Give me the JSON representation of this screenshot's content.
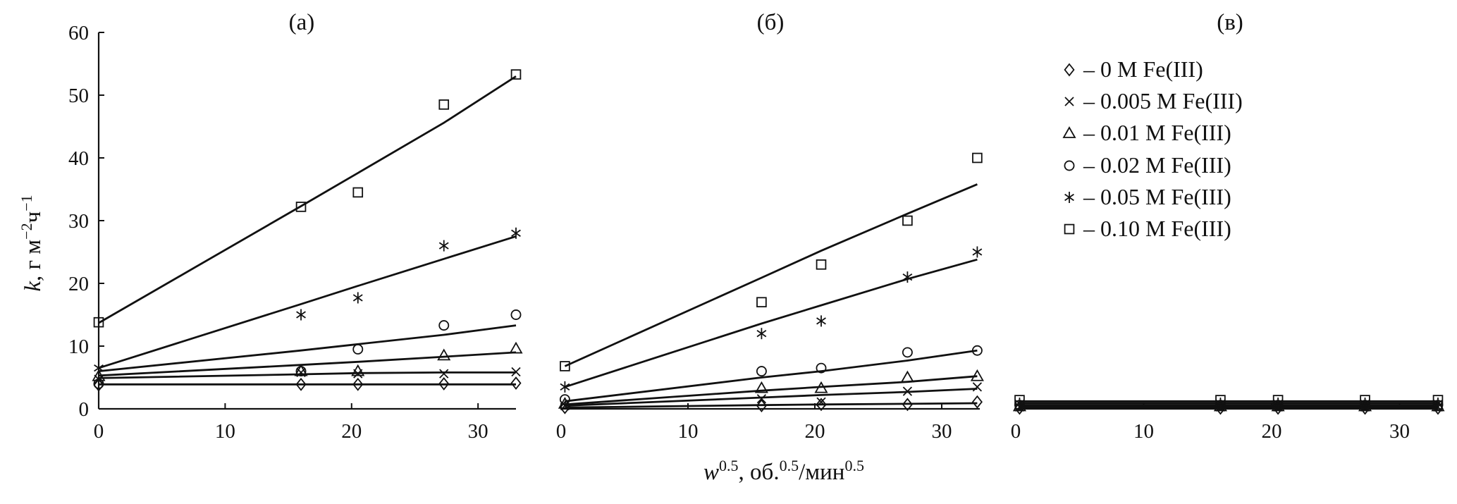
{
  "chart_data": {
    "type": "scatter",
    "ylabel": {
      "k": "k",
      "rest": ", г м",
      "sup1": "−2",
      "mid": "ч",
      "sup2": "−1"
    },
    "xlabel": {
      "w": "w",
      "sup1": "0.5",
      "rest": ", об.",
      "sup2": "0.5",
      "mid": "/мин",
      "sup3": "0.5"
    },
    "legend": [
      {
        "marker": "diamond",
        "label": "– 0 M Fe(III)"
      },
      {
        "marker": "cross",
        "label": "– 0.005 M Fe(III)"
      },
      {
        "marker": "triangle",
        "label": "– 0.01 M Fe(III)"
      },
      {
        "marker": "circle",
        "label": "– 0.02 M Fe(III)"
      },
      {
        "marker": "asterisk",
        "label": "– 0.05 M Fe(III)"
      },
      {
        "marker": "square",
        "label": "– 0.10 M Fe(III)"
      }
    ],
    "panels": [
      {
        "title": "(a)",
        "xlim": [
          0,
          33
        ],
        "ylim": [
          0,
          60
        ],
        "xticks": [
          "0",
          "10",
          "20",
          "30"
        ],
        "yticks": [
          "0",
          "10",
          "20",
          "30",
          "40",
          "50",
          "60"
        ],
        "x": [
          0,
          16,
          20.5,
          27.3,
          33
        ],
        "series": [
          {
            "marker": "diamond",
            "values": [
              3.8,
              3.9,
              3.9,
              4.0,
              4.1
            ],
            "fit": [
              3.9,
              3.9,
              3.9,
              3.9,
              3.9
            ]
          },
          {
            "marker": "cross",
            "values": [
              4.7,
              5.8,
              5.6,
              5.6,
              5.9
            ],
            "fit": [
              4.9,
              5.5,
              5.7,
              5.8,
              5.8
            ]
          },
          {
            "marker": "triangle",
            "values": [
              5.2,
              6.0,
              6.0,
              8.5,
              9.6
            ],
            "fit": [
              5.3,
              7.0,
              7.5,
              8.3,
              9.0
            ]
          },
          {
            "marker": "circle",
            "values": [
              4.0,
              6.0,
              9.5,
              13.3,
              15.0
            ],
            "fit": [
              6.0,
              9.3,
              10.3,
              11.8,
              13.3
            ]
          },
          {
            "marker": "asterisk",
            "values": [
              6.5,
              15.0,
              17.7,
              26.0,
              28.0
            ],
            "fit": [
              6.5,
              16.7,
              19.6,
              23.9,
              27.5
            ]
          },
          {
            "marker": "square",
            "values": [
              13.8,
              32.2,
              34.5,
              48.5,
              53.3
            ],
            "fit": [
              13.7,
              32.3,
              37.6,
              45.6,
              53.0
            ]
          }
        ]
      },
      {
        "title": "(б)",
        "xlim": [
          0,
          33
        ],
        "ylim": [
          0,
          60
        ],
        "xticks": [
          "0",
          "10",
          "20",
          "30"
        ],
        "yticks": [],
        "x": [
          0.3,
          15.8,
          20.5,
          27.3,
          32.8
        ],
        "series": [
          {
            "marker": "diamond",
            "values": [
              0.2,
              0.5,
              0.7,
              0.7,
              1.1
            ],
            "fit": [
              0.2,
              0.6,
              0.7,
              0.8,
              0.9
            ]
          },
          {
            "marker": "cross",
            "values": [
              0.5,
              1.6,
              1.1,
              2.8,
              3.5
            ],
            "fit": [
              0.5,
              1.8,
              2.2,
              2.7,
              3.2
            ]
          },
          {
            "marker": "triangle",
            "values": [
              0.8,
              3.3,
              3.3,
              5.0,
              5.2
            ],
            "fit": [
              0.7,
              2.9,
              3.5,
              4.3,
              5.2
            ]
          },
          {
            "marker": "circle",
            "values": [
              1.5,
              6.0,
              6.5,
              9.0,
              9.3
            ],
            "fit": [
              1.2,
              5.0,
              6.0,
              7.7,
              9.3
            ]
          },
          {
            "marker": "asterisk",
            "values": [
              3.5,
              12.0,
              14.0,
              21.0,
              25.0
            ],
            "fit": [
              3.5,
              13.6,
              16.5,
              20.7,
              23.8
            ]
          },
          {
            "marker": "square",
            "values": [
              6.8,
              17.0,
              23.0,
              30.0,
              40.0
            ],
            "fit": [
              6.8,
              20.9,
              25.2,
              31.1,
              35.8
            ]
          }
        ]
      },
      {
        "title": "(в)",
        "xlim": [
          0,
          33
        ],
        "ylim": [
          0,
          60
        ],
        "xticks": [
          "0",
          "10",
          "20",
          "30"
        ],
        "yticks": [],
        "x": [
          0.3,
          16.0,
          20.5,
          27.3,
          33.0
        ],
        "series": [
          {
            "marker": "diamond",
            "values": [
              0.1,
              0.1,
              0.1,
              0.1,
              0.1
            ],
            "fit": [
              0.1,
              0.1,
              0.1,
              0.1,
              0.1
            ]
          },
          {
            "marker": "cross",
            "values": [
              0.3,
              0.3,
              0.3,
              0.3,
              0.3
            ],
            "fit": [
              0.3,
              0.3,
              0.3,
              0.3,
              0.3
            ]
          },
          {
            "marker": "triangle",
            "values": [
              0.4,
              0.4,
              0.4,
              0.4,
              0.4
            ],
            "fit": [
              0.4,
              0.4,
              0.4,
              0.4,
              0.4
            ]
          },
          {
            "marker": "circle",
            "values": [
              0.6,
              0.6,
              0.6,
              0.6,
              0.6
            ],
            "fit": [
              0.6,
              0.6,
              0.6,
              0.6,
              0.6
            ]
          },
          {
            "marker": "asterisk",
            "values": [
              0.9,
              0.9,
              0.9,
              0.9,
              0.9
            ],
            "fit": [
              0.9,
              0.9,
              0.9,
              0.9,
              0.9
            ]
          },
          {
            "marker": "square",
            "values": [
              1.4,
              1.4,
              1.4,
              1.4,
              1.4
            ],
            "fit": [
              1.2,
              1.2,
              1.2,
              1.2,
              1.2
            ]
          }
        ]
      }
    ]
  }
}
